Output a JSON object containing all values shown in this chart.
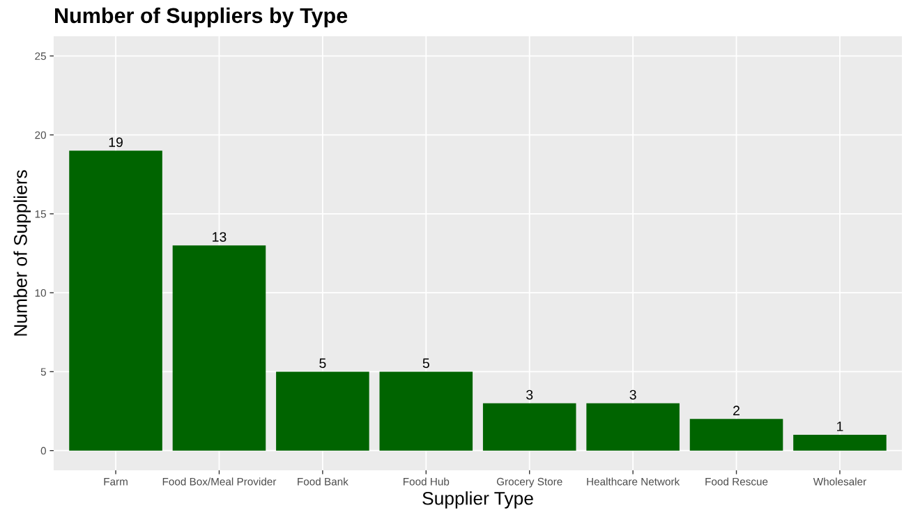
{
  "chart_data": {
    "type": "bar",
    "title": "Number of Suppliers by Type",
    "xlabel": "Supplier Type",
    "ylabel": "Number of Suppliers",
    "categories": [
      "Farm",
      "Food Box/Meal Provider",
      "Food Bank",
      "Food Hub",
      "Grocery Store",
      "Healthcare Network",
      "Food Rescue",
      "Wholesaler"
    ],
    "values": [
      19,
      13,
      5,
      5,
      3,
      3,
      2,
      1
    ],
    "color": "#006400",
    "ylim": [
      -1.25,
      26.25
    ],
    "yticks": [
      0,
      5,
      10,
      15,
      20,
      25
    ],
    "grid": true,
    "data_labels": true
  }
}
